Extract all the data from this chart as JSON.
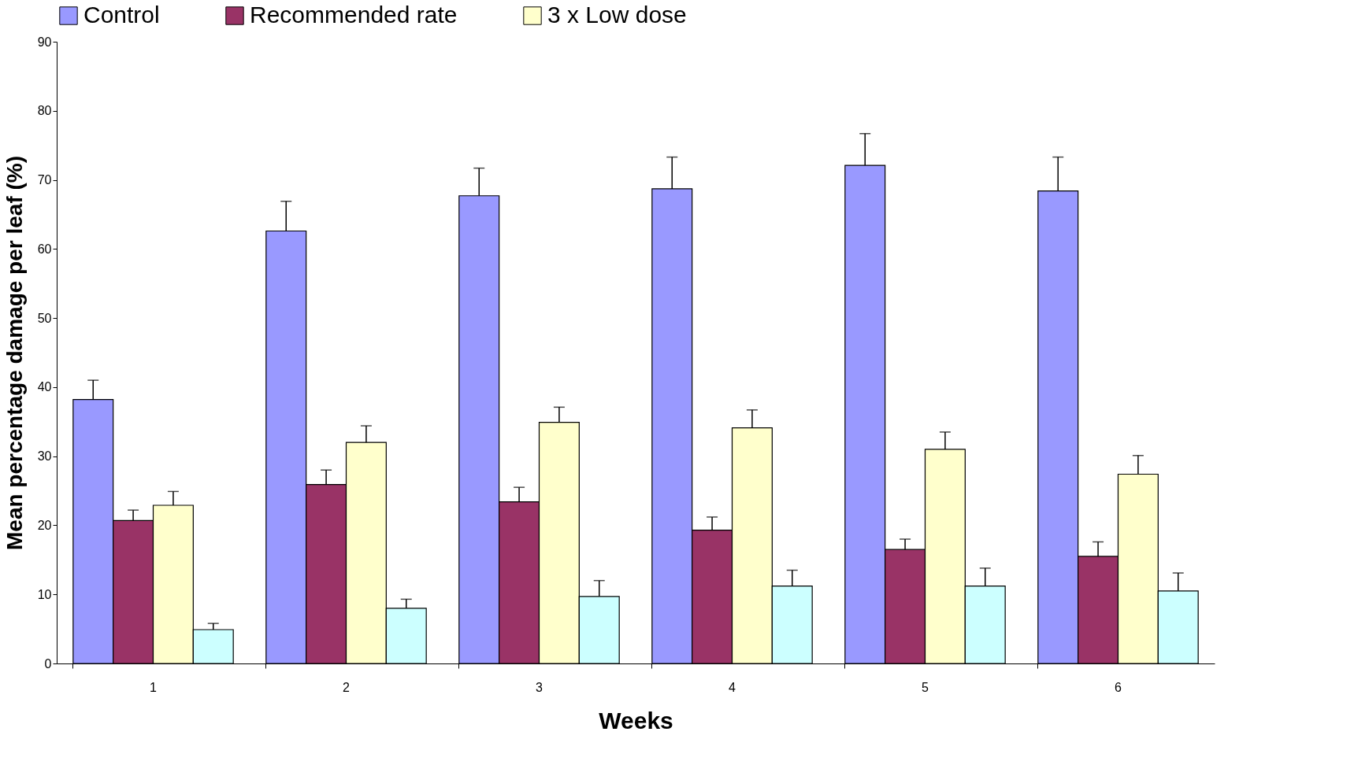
{
  "chart_data": {
    "type": "bar",
    "xlabel": "Weeks",
    "ylabel": "Mean percentage damage per leaf (%)",
    "categories": [
      "1",
      "2",
      "3",
      "4",
      "5",
      "6"
    ],
    "ylim": [
      0,
      90
    ],
    "yticks": [
      0,
      10,
      20,
      30,
      40,
      50,
      60,
      70,
      80,
      90
    ],
    "grid": false,
    "legend": "top",
    "series": [
      {
        "name": "Control",
        "color": "#9999ff",
        "values": [
          38.2,
          62.6,
          67.7,
          68.7,
          72.1,
          68.4
        ],
        "errors": [
          [
            38.2,
            41.0
          ],
          [
            62.6,
            66.9
          ],
          [
            67.7,
            71.7
          ],
          [
            68.7,
            73.3
          ],
          [
            72.1,
            76.7
          ],
          [
            68.4,
            73.3
          ]
        ]
      },
      {
        "name": "Recommended rate",
        "color": "#993366",
        "values": [
          20.7,
          25.9,
          23.4,
          19.3,
          16.5,
          15.5
        ],
        "errors": [
          [
            20.7,
            22.2
          ],
          [
            25.9,
            28.0
          ],
          [
            23.4,
            25.5
          ],
          [
            19.3,
            21.2
          ],
          [
            16.5,
            18.0
          ],
          [
            15.5,
            17.6
          ]
        ]
      },
      {
        "name": "3 x Low dose",
        "color": "#ffffcc",
        "values": [
          22.9,
          32.0,
          34.9,
          34.1,
          31.0,
          27.4
        ],
        "errors": [
          [
            22.9,
            24.9
          ],
          [
            32.0,
            34.4
          ],
          [
            34.9,
            37.1
          ],
          [
            34.1,
            36.7
          ],
          [
            31.0,
            33.5
          ],
          [
            27.4,
            30.1
          ]
        ]
      },
      {
        "color": "#ccffff",
        "values": [
          4.9,
          8.0,
          9.7,
          11.2,
          11.2,
          10.5
        ],
        "errors": [
          [
            4.9,
            5.8
          ],
          [
            8.0,
            9.3
          ],
          [
            9.7,
            12.0
          ],
          [
            11.2,
            13.5
          ],
          [
            11.2,
            13.8
          ],
          [
            10.5,
            13.1
          ]
        ]
      }
    ]
  }
}
